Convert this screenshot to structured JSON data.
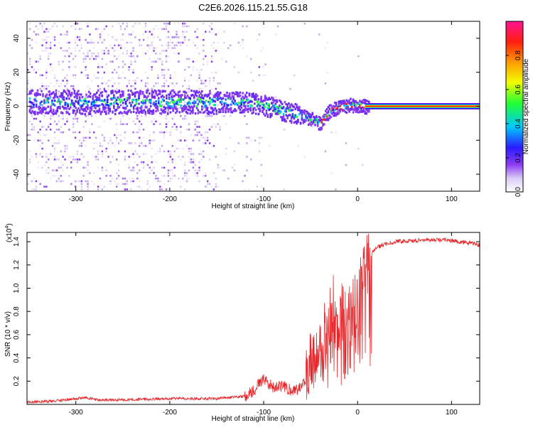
{
  "title": "C2E6.2026.115.21.55.G18",
  "colors": {
    "snr_line": "#e8262a",
    "frame": "#000000",
    "background": "#ffffff",
    "colorbar_stops": [
      "#ffffff",
      "#d9ccf5",
      "#8c3cf0",
      "#2a1bff",
      "#00c8ff",
      "#22ff33",
      "#f0ff00",
      "#ff9a00",
      "#ff1e10",
      "#ff1493"
    ]
  },
  "chart_data": [
    {
      "type": "heatmap",
      "xlabel": "Height of straight line (km)",
      "ylabel": "Frequency (Hz)",
      "xlim": [
        -352,
        130
      ],
      "ylim": [
        -50,
        50
      ],
      "x_ticks": [
        -300,
        -200,
        -100,
        0,
        100
      ],
      "x_tick_labels": [
        "-300",
        "-200",
        "-100",
        "0",
        "100"
      ],
      "y_ticks": [
        -40,
        -20,
        0,
        20,
        40
      ],
      "y_tick_labels": [
        "-40",
        "-20",
        "0",
        "20",
        "40"
      ],
      "colorbar": {
        "label": "Normalized spectral amplitude",
        "range": [
          0,
          1
        ],
        "ticks": [
          0.0,
          0.2,
          0.4,
          0.6,
          0.8
        ],
        "tick_labels": [
          "0.0",
          "0.2",
          "0.4",
          "0.6",
          "0.8"
        ]
      },
      "ridge_centerline": {
        "x": [
          -350,
          -300,
          -250,
          -200,
          -160,
          -140,
          -120,
          -100,
          -80,
          -60,
          -45,
          -40,
          -30,
          -20,
          -10,
          0,
          10,
          130
        ],
        "y": [
          3,
          3,
          3,
          3,
          3,
          3,
          3,
          1,
          -2,
          -5,
          -8,
          -10,
          -2,
          0,
          1,
          1,
          0,
          0
        ]
      }
    },
    {
      "type": "line",
      "xlabel": "Height of straight line (km)",
      "ylabel": "SNR (10 * v/v)",
      "y_multiplier": "(x10^4)",
      "xlim": [
        -352,
        130
      ],
      "ylim": [
        0,
        1.48
      ],
      "x_ticks": [
        -300,
        -200,
        -100,
        0,
        100
      ],
      "x_tick_labels": [
        "-300",
        "-200",
        "-100",
        "0",
        "100"
      ],
      "y_ticks": [
        0.2,
        0.4,
        0.6,
        0.8,
        1.0,
        1.2,
        1.4
      ],
      "y_tick_labels": [
        "0.2",
        "0.4",
        "0.6",
        "0.8",
        "1.0",
        "1.2",
        "1.4"
      ],
      "series": [
        {
          "x": [
            -350,
            -320,
            -300,
            -290,
            -280,
            -250,
            -200,
            -150,
            -120,
            -110,
            -105,
            -100,
            -95,
            -90,
            -80,
            -70,
            -60,
            -55,
            -50,
            -45,
            -40,
            -35,
            -30,
            -25,
            -20,
            -15,
            -10,
            -5,
            0,
            5,
            10,
            15,
            20,
            30,
            40,
            60,
            80,
            100,
            120,
            130
          ],
          "y": [
            0.02,
            0.03,
            0.05,
            0.06,
            0.04,
            0.04,
            0.05,
            0.05,
            0.07,
            0.12,
            0.18,
            0.22,
            0.18,
            0.15,
            0.16,
            0.12,
            0.14,
            0.22,
            0.35,
            0.45,
            0.55,
            0.62,
            0.75,
            0.85,
            0.7,
            0.8,
            0.75,
            0.82,
            0.9,
            1.05,
            1.2,
            1.3,
            1.35,
            1.38,
            1.4,
            1.41,
            1.42,
            1.41,
            1.39,
            1.37
          ]
        }
      ]
    }
  ]
}
